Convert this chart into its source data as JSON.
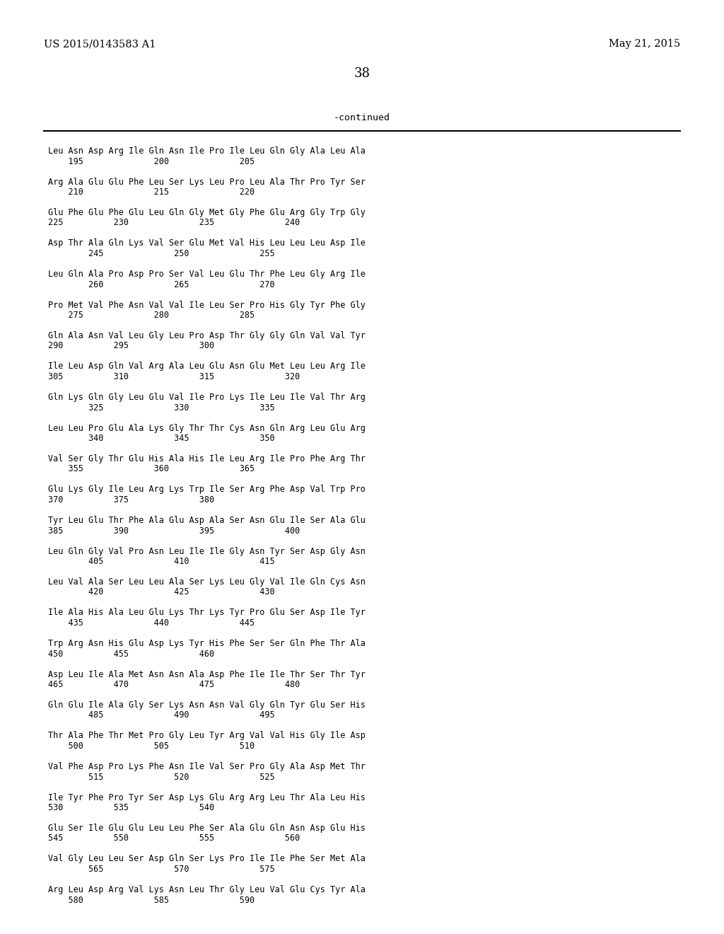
{
  "header_left": "US 2015/0143583 A1",
  "header_right": "May 21, 2015",
  "page_number": "38",
  "continued_label": "-continued",
  "background_color": "#ffffff",
  "text_color": "#000000",
  "mono_font_size": 8.5,
  "header_font_size": 10.5,
  "page_num_font_size": 13,
  "blocks": [
    [
      "Leu Asn Asp Arg Ile Gln Asn Ile Pro Ile Leu Gln Gly Ala Leu Ala",
      "    195              200              205"
    ],
    [
      "Arg Ala Glu Glu Phe Leu Ser Lys Leu Pro Leu Ala Thr Pro Tyr Ser",
      "    210              215              220"
    ],
    [
      "Glu Phe Glu Phe Glu Leu Gln Gly Met Gly Phe Glu Arg Gly Trp Gly",
      "225          230              235              240"
    ],
    [
      "Asp Thr Ala Gln Lys Val Ser Glu Met Val His Leu Leu Leu Asp Ile",
      "        245              250              255"
    ],
    [
      "Leu Gln Ala Pro Asp Pro Ser Val Leu Glu Thr Phe Leu Gly Arg Ile",
      "        260              265              270"
    ],
    [
      "Pro Met Val Phe Asn Val Val Ile Leu Ser Pro His Gly Tyr Phe Gly",
      "    275              280              285"
    ],
    [
      "Gln Ala Asn Val Leu Gly Leu Pro Asp Thr Gly Gly Gln Val Val Tyr",
      "290          295              300"
    ],
    [
      "Ile Leu Asp Gln Val Arg Ala Leu Glu Asn Glu Met Leu Leu Arg Ile",
      "305          310              315              320"
    ],
    [
      "Gln Lys Gln Gly Leu Glu Val Ile Pro Lys Ile Leu Ile Val Thr Arg",
      "        325              330              335"
    ],
    [
      "Leu Leu Pro Glu Ala Lys Gly Thr Thr Cys Asn Gln Arg Leu Glu Arg",
      "        340              345              350"
    ],
    [
      "Val Ser Gly Thr Glu His Ala His Ile Leu Arg Ile Pro Phe Arg Thr",
      "    355              360              365"
    ],
    [
      "Glu Lys Gly Ile Leu Arg Lys Trp Ile Ser Arg Phe Asp Val Trp Pro",
      "370          375              380"
    ],
    [
      "Tyr Leu Glu Thr Phe Ala Glu Asp Ala Ser Asn Glu Ile Ser Ala Glu",
      "385          390              395              400"
    ],
    [
      "Leu Gln Gly Val Pro Asn Leu Ile Ile Gly Asn Tyr Ser Asp Gly Asn",
      "        405              410              415"
    ],
    [
      "Leu Val Ala Ser Leu Leu Ala Ser Lys Leu Gly Val Ile Gln Cys Asn",
      "        420              425              430"
    ],
    [
      "Ile Ala His Ala Leu Glu Lys Thr Lys Tyr Pro Glu Ser Asp Ile Tyr",
      "    435              440              445"
    ],
    [
      "Trp Arg Asn His Glu Asp Lys Tyr His Phe Ser Ser Gln Phe Thr Ala",
      "450          455              460"
    ],
    [
      "Asp Leu Ile Ala Met Asn Asn Ala Asp Phe Ile Ile Thr Ser Thr Tyr",
      "465          470              475              480"
    ],
    [
      "Gln Glu Ile Ala Gly Ser Lys Asn Asn Val Gly Gln Tyr Glu Ser His",
      "        485              490              495"
    ],
    [
      "Thr Ala Phe Thr Met Pro Gly Leu Tyr Arg Val Val His Gly Ile Asp",
      "    500              505              510"
    ],
    [
      "Val Phe Asp Pro Lys Phe Asn Ile Val Ser Pro Gly Ala Asp Met Thr",
      "        515              520              525"
    ],
    [
      "Ile Tyr Phe Pro Tyr Ser Asp Lys Glu Arg Arg Leu Thr Ala Leu His",
      "530          535              540"
    ],
    [
      "Glu Ser Ile Glu Glu Leu Leu Phe Ser Ala Glu Gln Asn Asp Glu His",
      "545          550              555              560"
    ],
    [
      "Val Gly Leu Leu Ser Asp Gln Ser Lys Pro Ile Ile Phe Ser Met Ala",
      "        565              570              575"
    ],
    [
      "Arg Leu Asp Arg Val Lys Asn Leu Thr Gly Leu Val Glu Cys Tyr Ala",
      "    580              585              590"
    ]
  ]
}
